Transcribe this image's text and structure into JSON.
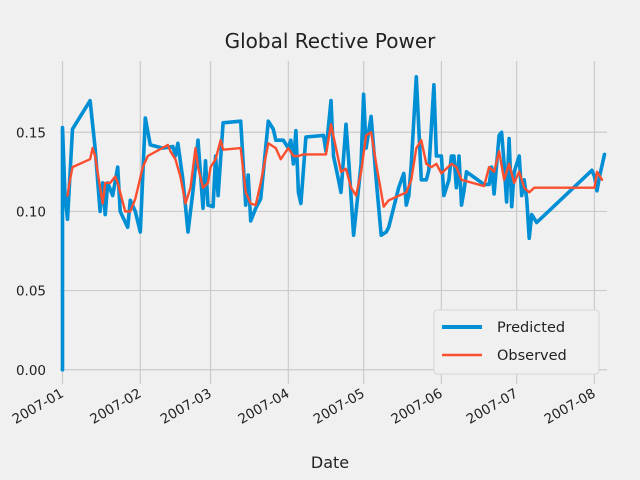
{
  "chart_data": {
    "type": "line",
    "title": "Global Rective Power",
    "xlabel": "Date",
    "ylabel": "",
    "ylim": [
      -0.009,
      0.195
    ],
    "xlim": [
      "2006-12-31",
      "2007-08-06"
    ],
    "grid": true,
    "legend": "lower right",
    "x_ticks": [
      "2007-01",
      "2007-02",
      "2007-03",
      "2007-04",
      "2007-05",
      "2007-06",
      "2007-07",
      "2007-08"
    ],
    "y_ticks": [
      "0.00",
      "0.05",
      "0.10",
      "0.15"
    ],
    "series": [
      {
        "name": "Predicted",
        "color": "#008fd5",
        "points": [
          [
            "2007-01-01",
            0.0
          ],
          [
            "2007-01-01",
            0.153
          ],
          [
            "2007-01-02",
            0.11
          ],
          [
            "2007-01-03",
            0.095
          ],
          [
            "2007-01-05",
            0.152
          ],
          [
            "2007-01-12",
            0.17
          ],
          [
            "2007-01-14",
            0.14
          ],
          [
            "2007-01-16",
            0.1
          ],
          [
            "2007-01-17",
            0.118
          ],
          [
            "2007-01-18",
            0.098
          ],
          [
            "2007-01-19",
            0.118
          ],
          [
            "2007-01-21",
            0.11
          ],
          [
            "2007-01-23",
            0.128
          ],
          [
            "2007-01-24",
            0.1
          ],
          [
            "2007-01-27",
            0.09
          ],
          [
            "2007-01-28",
            0.107
          ],
          [
            "2007-01-30",
            0.1
          ],
          [
            "2007-02-01",
            0.087
          ],
          [
            "2007-02-03",
            0.159
          ],
          [
            "2007-02-05",
            0.142
          ],
          [
            "2007-02-10",
            0.14
          ],
          [
            "2007-02-14",
            0.141
          ],
          [
            "2007-02-15",
            0.135
          ],
          [
            "2007-02-16",
            0.143
          ],
          [
            "2007-02-18",
            0.12
          ],
          [
            "2007-02-20",
            0.087
          ],
          [
            "2007-02-22",
            0.113
          ],
          [
            "2007-02-24",
            0.145
          ],
          [
            "2007-02-26",
            0.102
          ],
          [
            "2007-02-27",
            0.132
          ],
          [
            "2007-02-28",
            0.104
          ],
          [
            "2007-03-02",
            0.103
          ],
          [
            "2007-03-03",
            0.135
          ],
          [
            "2007-03-04",
            0.11
          ],
          [
            "2007-03-06",
            0.156
          ],
          [
            "2007-03-13",
            0.157
          ],
          [
            "2007-03-15",
            0.104
          ],
          [
            "2007-03-16",
            0.123
          ],
          [
            "2007-03-17",
            0.094
          ],
          [
            "2007-03-19",
            0.102
          ],
          [
            "2007-03-21",
            0.108
          ],
          [
            "2007-03-24",
            0.157
          ],
          [
            "2007-03-26",
            0.152
          ],
          [
            "2007-03-27",
            0.145
          ],
          [
            "2007-03-30",
            0.145
          ],
          [
            "2007-04-01",
            0.14
          ],
          [
            "2007-04-02",
            0.145
          ],
          [
            "2007-04-03",
            0.13
          ],
          [
            "2007-04-04",
            0.151
          ],
          [
            "2007-04-05",
            0.112
          ],
          [
            "2007-04-06",
            0.105
          ],
          [
            "2007-04-08",
            0.147
          ],
          [
            "2007-04-15",
            0.148
          ],
          [
            "2007-04-16",
            0.138
          ],
          [
            "2007-04-18",
            0.17
          ],
          [
            "2007-04-19",
            0.135
          ],
          [
            "2007-04-21",
            0.12
          ],
          [
            "2007-04-22",
            0.112
          ],
          [
            "2007-04-24",
            0.155
          ],
          [
            "2007-04-25",
            0.133
          ],
          [
            "2007-04-27",
            0.085
          ],
          [
            "2007-04-30",
            0.13
          ],
          [
            "2007-05-01",
            0.174
          ],
          [
            "2007-05-02",
            0.14
          ],
          [
            "2007-05-04",
            0.16
          ],
          [
            "2007-05-06",
            0.12
          ],
          [
            "2007-05-08",
            0.085
          ],
          [
            "2007-05-10",
            0.087
          ],
          [
            "2007-05-11",
            0.09
          ],
          [
            "2007-05-15",
            0.115
          ],
          [
            "2007-05-17",
            0.124
          ],
          [
            "2007-05-18",
            0.104
          ],
          [
            "2007-05-19",
            0.11
          ],
          [
            "2007-05-20",
            0.13
          ],
          [
            "2007-05-22",
            0.185
          ],
          [
            "2007-05-24",
            0.12
          ],
          [
            "2007-05-26",
            0.12
          ],
          [
            "2007-05-27",
            0.126
          ],
          [
            "2007-05-29",
            0.18
          ],
          [
            "2007-05-30",
            0.135
          ],
          [
            "2007-06-01",
            0.135
          ],
          [
            "2007-06-02",
            0.11
          ],
          [
            "2007-06-04",
            0.12
          ],
          [
            "2007-06-05",
            0.135
          ],
          [
            "2007-06-06",
            0.135
          ],
          [
            "2007-06-07",
            0.115
          ],
          [
            "2007-06-08",
            0.135
          ],
          [
            "2007-06-09",
            0.104
          ],
          [
            "2007-06-10",
            0.113
          ],
          [
            "2007-06-11",
            0.125
          ],
          [
            "2007-06-18",
            0.117
          ],
          [
            "2007-06-20",
            0.117
          ],
          [
            "2007-06-21",
            0.128
          ],
          [
            "2007-06-22",
            0.111
          ],
          [
            "2007-06-24",
            0.148
          ],
          [
            "2007-06-25",
            0.15
          ],
          [
            "2007-06-26",
            0.13
          ],
          [
            "2007-06-27",
            0.106
          ],
          [
            "2007-06-28",
            0.146
          ],
          [
            "2007-06-29",
            0.103
          ],
          [
            "2007-06-30",
            0.125
          ],
          [
            "2007-07-02",
            0.135
          ],
          [
            "2007-07-03",
            0.11
          ],
          [
            "2007-07-04",
            0.12
          ],
          [
            "2007-07-05",
            0.108
          ],
          [
            "2007-07-06",
            0.083
          ],
          [
            "2007-07-07",
            0.098
          ],
          [
            "2007-07-09",
            0.093
          ],
          [
            "2007-07-31",
            0.126
          ],
          [
            "2007-08-01",
            0.122
          ],
          [
            "2007-08-02",
            0.113
          ],
          [
            "2007-08-03",
            0.122
          ],
          [
            "2007-08-05",
            0.136
          ]
        ]
      },
      {
        "name": "Observed",
        "color": "#fc4f30",
        "points": [
          [
            "2007-01-03",
            0.11
          ],
          [
            "2007-01-04",
            0.12
          ],
          [
            "2007-01-05",
            0.128
          ],
          [
            "2007-01-12",
            0.133
          ],
          [
            "2007-01-13",
            0.14
          ],
          [
            "2007-01-14",
            0.135
          ],
          [
            "2007-01-16",
            0.115
          ],
          [
            "2007-01-17",
            0.105
          ],
          [
            "2007-01-18",
            0.118
          ],
          [
            "2007-01-20",
            0.118
          ],
          [
            "2007-01-22",
            0.122
          ],
          [
            "2007-01-23",
            0.118
          ],
          [
            "2007-01-26",
            0.1
          ],
          [
            "2007-01-28",
            0.1
          ],
          [
            "2007-01-30",
            0.108
          ],
          [
            "2007-02-02",
            0.128
          ],
          [
            "2007-02-04",
            0.135
          ],
          [
            "2007-02-12",
            0.142
          ],
          [
            "2007-02-13",
            0.138
          ],
          [
            "2007-02-15",
            0.133
          ],
          [
            "2007-02-17",
            0.122
          ],
          [
            "2007-02-19",
            0.105
          ],
          [
            "2007-02-21",
            0.115
          ],
          [
            "2007-02-23",
            0.14
          ],
          [
            "2007-02-24",
            0.128
          ],
          [
            "2007-02-26",
            0.115
          ],
          [
            "2007-02-28",
            0.118
          ],
          [
            "2007-03-01",
            0.128
          ],
          [
            "2007-03-03",
            0.133
          ],
          [
            "2007-03-05",
            0.145
          ],
          [
            "2007-03-06",
            0.139
          ],
          [
            "2007-03-13",
            0.14
          ],
          [
            "2007-03-15",
            0.112
          ],
          [
            "2007-03-17",
            0.105
          ],
          [
            "2007-03-19",
            0.104
          ],
          [
            "2007-03-21",
            0.118
          ],
          [
            "2007-03-24",
            0.143
          ],
          [
            "2007-03-27",
            0.14
          ],
          [
            "2007-03-29",
            0.133
          ],
          [
            "2007-04-01",
            0.14
          ],
          [
            "2007-04-03",
            0.135
          ],
          [
            "2007-04-05",
            0.135
          ],
          [
            "2007-04-07",
            0.136
          ],
          [
            "2007-04-16",
            0.136
          ],
          [
            "2007-04-18",
            0.155
          ],
          [
            "2007-04-20",
            0.14
          ],
          [
            "2007-04-22",
            0.125
          ],
          [
            "2007-04-24",
            0.127
          ],
          [
            "2007-04-26",
            0.115
          ],
          [
            "2007-04-28",
            0.11
          ],
          [
            "2007-04-30",
            0.125
          ],
          [
            "2007-05-02",
            0.148
          ],
          [
            "2007-05-04",
            0.15
          ],
          [
            "2007-05-06",
            0.13
          ],
          [
            "2007-05-09",
            0.103
          ],
          [
            "2007-05-11",
            0.107
          ],
          [
            "2007-05-18",
            0.112
          ],
          [
            "2007-05-20",
            0.12
          ],
          [
            "2007-05-22",
            0.14
          ],
          [
            "2007-05-24",
            0.145
          ],
          [
            "2007-05-26",
            0.13
          ],
          [
            "2007-05-28",
            0.128
          ],
          [
            "2007-05-30",
            0.13
          ],
          [
            "2007-06-01",
            0.124
          ],
          [
            "2007-06-05",
            0.13
          ],
          [
            "2007-06-07",
            0.128
          ],
          [
            "2007-06-09",
            0.12
          ],
          [
            "2007-06-18",
            0.116
          ],
          [
            "2007-06-20",
            0.128
          ],
          [
            "2007-06-22",
            0.125
          ],
          [
            "2007-06-24",
            0.138
          ],
          [
            "2007-06-26",
            0.12
          ],
          [
            "2007-06-28",
            0.13
          ],
          [
            "2007-06-30",
            0.118
          ],
          [
            "2007-07-02",
            0.125
          ],
          [
            "2007-07-04",
            0.115
          ],
          [
            "2007-07-06",
            0.112
          ],
          [
            "2007-07-08",
            0.115
          ],
          [
            "2007-08-01",
            0.115
          ],
          [
            "2007-08-02",
            0.125
          ],
          [
            "2007-08-04",
            0.12
          ]
        ]
      }
    ]
  }
}
